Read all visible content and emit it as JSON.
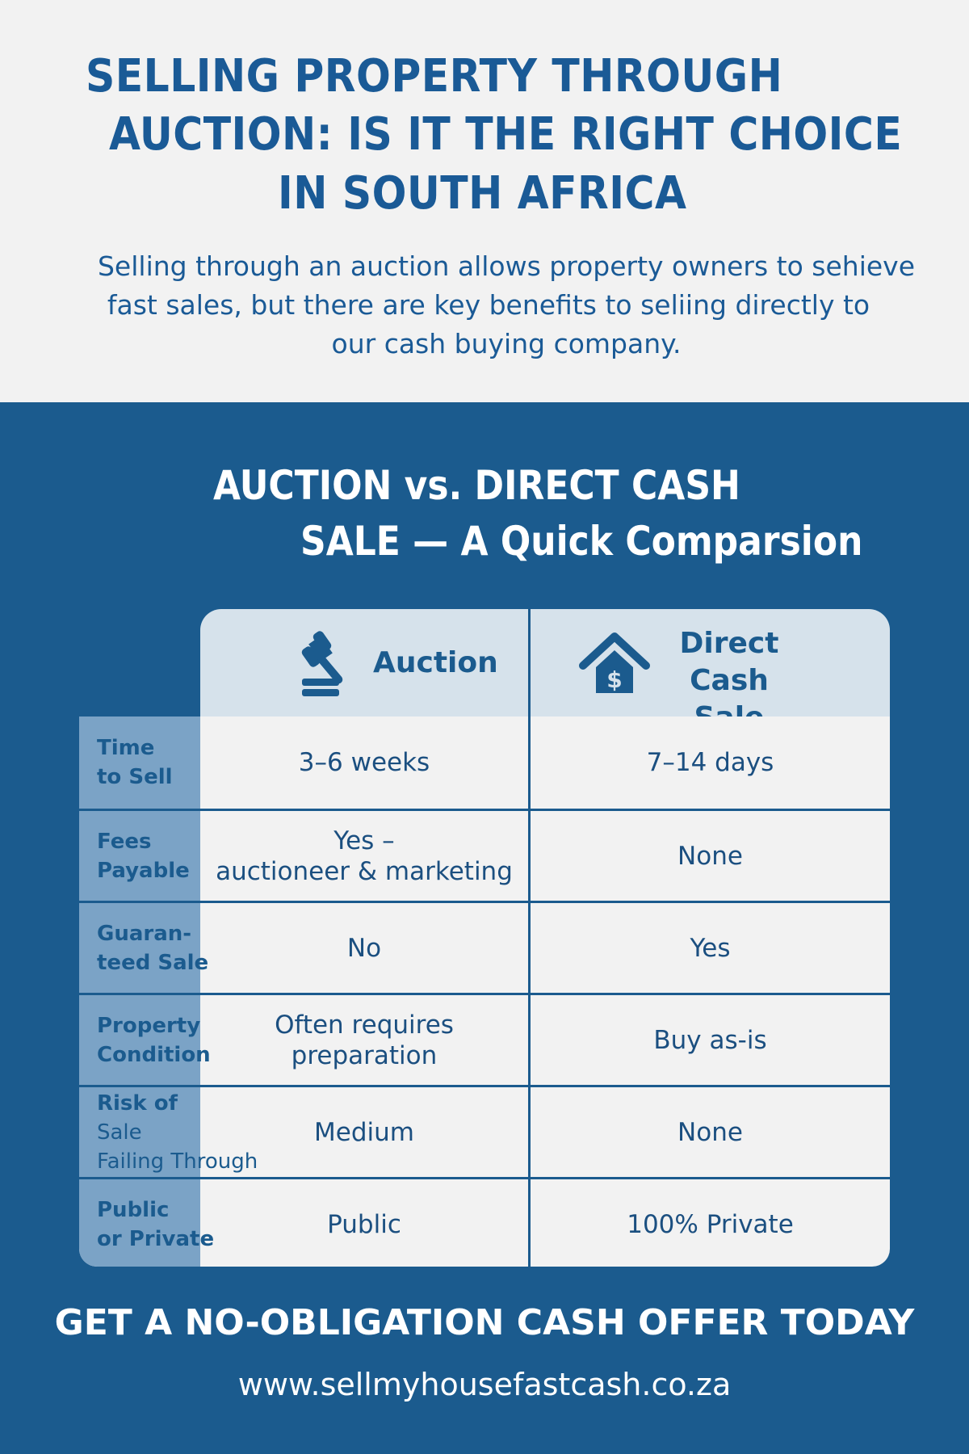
{
  "header": {
    "title_lines": [
      "SELLING PROPERTY THROUGH",
      "AUCTION: IS IT THE RIGHT CHOICE",
      "IN SOUTH AFRICA"
    ],
    "subtitle_lines": [
      "Selling through an auction allows property owners to sehieve",
      "fast sales, but there are key benefits to seliing directly to",
      "our cash buying company."
    ]
  },
  "comparison": {
    "heading_lines": [
      "AUCTION vs. DIRECT CASH",
      "SALE — A Quick Comparsion"
    ],
    "columns": [
      {
        "label": "Auction",
        "icon": "gavel-icon"
      },
      {
        "label_lines": [
          "Direct Cash",
          "Sale"
        ],
        "icon": "house-dollar-icon"
      }
    ],
    "rows": [
      {
        "label_lines": [
          "Time",
          "to Sell"
        ],
        "auction": "3–6 weeks",
        "direct": "7–14 days"
      },
      {
        "label_lines": [
          "Fees",
          "Payable"
        ],
        "auction_lines": [
          "Yes –",
          "auctioneer & marketing"
        ],
        "direct": "None"
      },
      {
        "label_lines": [
          "Guaran-",
          "teed Sale"
        ],
        "auction": "No",
        "direct": "Yes"
      },
      {
        "label_lines": [
          "Property",
          "Condition"
        ],
        "auction_lines": [
          "Often requires",
          "preparation"
        ],
        "direct": "Buy as-is"
      },
      {
        "label_lines": [
          "Risk of",
          "Sale",
          "Failing Through"
        ],
        "auction": "Medium",
        "direct": "None"
      },
      {
        "label_lines": [
          "Public",
          "or Private"
        ],
        "auction": "Public",
        "direct": "100% Private"
      }
    ]
  },
  "footer": {
    "cta": "GET A NO-OBLIGATION CASH OFFER TODAY",
    "url": "www.sellmyhousefastcash.co.za"
  },
  "colors": {
    "brand_blue": "#1b5b8e",
    "light_bg": "#f2f2f2",
    "header_bg": "#d6e2eb",
    "label_col": "#7ba3c6"
  }
}
